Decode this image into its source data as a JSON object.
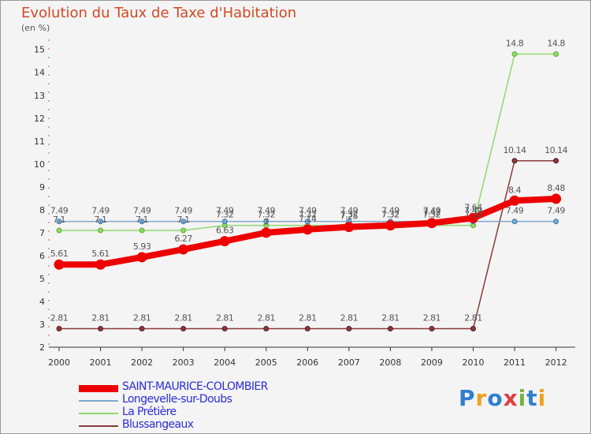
{
  "title": "Evolution du Taux de Taxe d'Habitation",
  "unit": "(en %)",
  "logo": {
    "text": "Proxiti",
    "colors": [
      "#2f7fd0",
      "#f0a020",
      "#2f7fd0",
      "#e04040",
      "#7ab040",
      "#2f7fd0",
      "#f0a020"
    ]
  },
  "chart_data": {
    "type": "line",
    "title": "Evolution du Taux de Taxe d'Habitation",
    "ylabel": "(en %)",
    "x": [
      "2000",
      "2001",
      "2002",
      "2003",
      "2004",
      "2005",
      "2006",
      "2007",
      "2008",
      "2009",
      "2010",
      "2011",
      "2012"
    ],
    "y_ticks": [
      "2",
      "3",
      "4",
      "5",
      "6",
      "7",
      "8",
      "9",
      "10",
      "11",
      "12",
      "13",
      "14",
      "15"
    ],
    "ylim": [
      2,
      15.3
    ],
    "grid": false,
    "legend_position": "bottom-left",
    "series": [
      {
        "name": "SAINT-MAURICE-COLOMBIER",
        "color": "#ee0000",
        "width": 8,
        "values": [
          5.61,
          5.61,
          5.93,
          6.27,
          6.63,
          7.0,
          7.14,
          7.25,
          7.32,
          7.42,
          7.64,
          8.4,
          8.48
        ],
        "labels": [
          "5.61",
          "5.61",
          "5.93",
          "6.27",
          "6.63",
          "7",
          "7.14",
          "7.25",
          "7.32",
          "7.42",
          "7.64",
          "8.4",
          "8.48"
        ]
      },
      {
        "name": "Longevelle-sur-Doubs",
        "color": "#7fa8c8",
        "width": 1.5,
        "values": [
          7.49,
          7.49,
          7.49,
          7.49,
          7.49,
          7.49,
          7.49,
          7.49,
          7.49,
          7.49,
          7.49,
          7.49,
          7.49
        ],
        "labels": [
          "7.49",
          "7.49",
          "7.49",
          "7.49",
          "7.49",
          "7.49",
          "7.49",
          "7.49",
          "7.49",
          "7.49",
          "7.49",
          "7.49",
          "7.49"
        ]
      },
      {
        "name": "La Prétière",
        "color": "#90d870",
        "width": 1.5,
        "values": [
          7.1,
          7.1,
          7.1,
          7.1,
          7.32,
          7.32,
          7.32,
          7.32,
          7.32,
          7.32,
          7.32,
          14.8,
          14.8
        ],
        "labels": [
          "7.1",
          "7.1",
          "7.1",
          "7.1",
          "7.32",
          "7.32",
          "7.32",
          "7.32",
          "7.32",
          "7.32",
          "7.32",
          "14.8",
          "14.8"
        ]
      },
      {
        "name": "Blussangeaux",
        "color": "#8a3a3a",
        "width": 1.5,
        "values": [
          2.81,
          2.81,
          2.81,
          2.81,
          2.81,
          2.81,
          2.81,
          2.81,
          2.81,
          2.81,
          2.81,
          10.14,
          10.14
        ],
        "labels": [
          "2.81",
          "2.81",
          "2.81",
          "2.81",
          "2.81",
          "2.81",
          "2.81",
          "2.81",
          "2.81",
          "2.81",
          "2.81",
          "10.14",
          "10.14"
        ]
      }
    ]
  }
}
